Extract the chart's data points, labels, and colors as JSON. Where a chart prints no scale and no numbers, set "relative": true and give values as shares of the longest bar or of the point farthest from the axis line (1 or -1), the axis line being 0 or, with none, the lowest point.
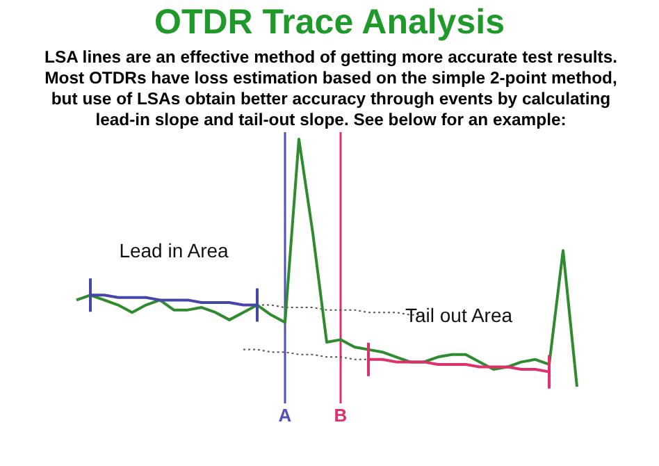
{
  "chart_data": {
    "type": "line",
    "title": "OTDR Trace Analysis",
    "subtitle": "LSA lines are an effective method of getting more accurate test results. Most OTDRs have loss estimation based on the simple 2-point method, but use of LSAs obtain better accuracy through events by calculating lead-in slope and tail-out slope. See below for an example:",
    "relative": true,
    "categories": [
      null,
      null,
      null,
      null,
      null,
      null,
      null,
      null,
      null,
      null,
      null,
      null,
      null,
      null,
      null,
      null,
      null,
      null,
      null,
      null,
      null,
      null,
      null,
      null,
      null,
      null,
      null,
      null,
      null,
      null,
      null,
      null,
      null,
      null,
      null,
      null,
      null
    ],
    "series": [
      {
        "color": "#2e8b2e",
        "values": [
          0.35,
          0.37,
          0.35,
          0.33,
          0.3,
          0.33,
          0.35,
          0.31,
          0.31,
          0.32,
          0.3,
          0.27,
          0.3,
          0.33,
          0.29,
          0.26,
          1,
          0.62,
          0.18,
          0.19,
          0.16,
          0.15,
          0.14,
          0.12,
          0.1,
          0.1,
          0.12,
          0.13,
          0.13,
          0.1,
          0.07,
          0.08,
          0.1,
          0.11,
          0.09,
          0.55,
          0
        ]
      },
      {
        "name": "Lead in Area",
        "color": "#4646a8",
        "values": [
          null,
          0.37,
          0.37,
          0.36,
          0.36,
          0.36,
          0.35,
          0.35,
          0.35,
          0.34,
          0.34,
          0.34,
          0.33,
          0.33,
          null,
          null,
          null,
          null,
          null,
          null,
          null,
          null,
          null,
          null,
          null,
          null,
          null,
          null,
          null,
          null,
          null,
          null,
          null,
          null,
          null,
          null,
          null
        ]
      },
      {
        "name": "Tail out Area",
        "color": "#e0306a",
        "values": [
          null,
          null,
          null,
          null,
          null,
          null,
          null,
          null,
          null,
          null,
          null,
          null,
          null,
          null,
          null,
          null,
          null,
          null,
          null,
          null,
          null,
          0.11,
          0.11,
          0.1,
          0.1,
          0.1,
          0.09,
          0.09,
          0.09,
          0.08,
          0.08,
          0.08,
          0.07,
          0.07,
          0.06,
          null,
          null
        ]
      },
      {
        "color": "#555555",
        "line_style": "dotted",
        "values": [
          null,
          null,
          null,
          null,
          null,
          null,
          null,
          null,
          null,
          null,
          null,
          null,
          null,
          0.33,
          0.33,
          0.32,
          0.32,
          0.32,
          0.31,
          0.31,
          0.31,
          0.3,
          0.3,
          0.3,
          0.29,
          0.29,
          null,
          null,
          null,
          null,
          null,
          null,
          null,
          null,
          null,
          null,
          null
        ]
      },
      {
        "color": "#555555",
        "line_style": "dotted",
        "values": [
          null,
          null,
          null,
          null,
          null,
          null,
          null,
          null,
          null,
          null,
          null,
          null,
          0.15,
          0.15,
          0.14,
          0.14,
          0.13,
          0.13,
          0.12,
          0.12,
          0.11,
          0.11,
          null,
          null,
          null,
          null,
          null,
          null,
          null,
          null,
          null,
          null,
          null,
          null,
          null,
          null,
          null
        ]
      }
    ],
    "annotations": [
      "A",
      "B"
    ]
  }
}
